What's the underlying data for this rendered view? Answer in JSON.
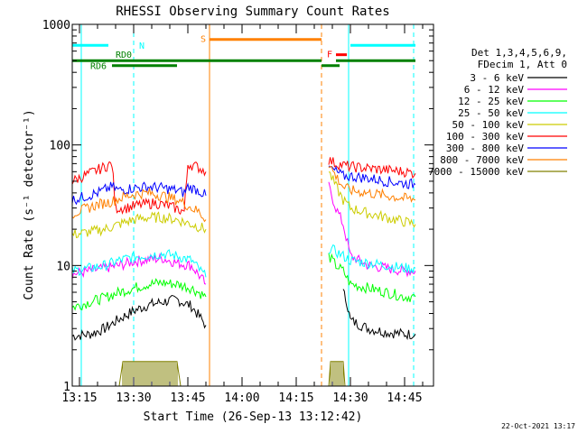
{
  "chart_data": {
    "type": "line",
    "title": "RHESSI Observing Summary Count Rates",
    "xlabel": "Start Time (26-Sep-13 13:12:42)",
    "ylabel": "Count Rate (s⁻¹ detector⁻¹)",
    "x_unit": "minutes after 13:00 UT",
    "xlim": [
      13,
      113
    ],
    "ylim": [
      1,
      1000
    ],
    "yscale": "log",
    "grid": false,
    "xticks": [
      {
        "value": 15,
        "label": "13:15"
      },
      {
        "value": 30,
        "label": "13:30"
      },
      {
        "value": 45,
        "label": "13:45"
      },
      {
        "value": 60,
        "label": "14:00"
      },
      {
        "value": 75,
        "label": "14:15"
      },
      {
        "value": 90,
        "label": "14:30"
      },
      {
        "value": 105,
        "label": "14:45"
      }
    ],
    "yticks": [
      {
        "value": 1,
        "label": "1"
      },
      {
        "value": 10,
        "label": "10"
      },
      {
        "value": 100,
        "label": "100"
      },
      {
        "value": 1000,
        "label": "1000"
      }
    ],
    "legend": {
      "placement": "right",
      "header": [
        "Det 1,3,4,5,6,9,",
        "FDecim 1, Att 0"
      ]
    },
    "series": [
      {
        "name": "3 - 6 keV",
        "color": "#000000",
        "segments": [
          [
            [
              13,
              2.6
            ],
            [
              18,
              2.7
            ],
            [
              22,
              3.0
            ],
            [
              26,
              3.6
            ],
            [
              30,
              4.2
            ],
            [
              34,
              4.7
            ],
            [
              38,
              5.0
            ],
            [
              42,
              5.2
            ],
            [
              46,
              4.6
            ],
            [
              50,
              3.2
            ]
          ],
          [
            [
              88,
              6
            ],
            [
              89,
              5
            ],
            [
              90,
              3.5
            ],
            [
              95,
              3.0
            ],
            [
              100,
              2.8
            ],
            [
              105,
              2.7
            ],
            [
              108,
              2.7
            ]
          ]
        ]
      },
      {
        "name": "6 - 12 keV",
        "color": "#ff00ff",
        "segments": [
          [
            [
              13,
              8.5
            ],
            [
              18,
              9.0
            ],
            [
              22,
              9.5
            ],
            [
              26,
              10
            ],
            [
              30,
              10.8
            ],
            [
              34,
              11.2
            ],
            [
              38,
              11.5
            ],
            [
              42,
              10.5
            ],
            [
              46,
              10
            ],
            [
              50,
              7
            ]
          ],
          [
            [
              84,
              45
            ],
            [
              86,
              30
            ],
            [
              88,
              22
            ],
            [
              90,
              12
            ],
            [
              95,
              10
            ],
            [
              100,
              9.5
            ],
            [
              105,
              9
            ],
            [
              108,
              9
            ]
          ]
        ]
      },
      {
        "name": "12 - 25 keV",
        "color": "#00ff00",
        "segments": [
          [
            [
              13,
              4.5
            ],
            [
              18,
              5.0
            ],
            [
              22,
              5.4
            ],
            [
              26,
              6.0
            ],
            [
              30,
              6.5
            ],
            [
              34,
              7.0
            ],
            [
              38,
              7.2
            ],
            [
              42,
              7.0
            ],
            [
              46,
              6.5
            ],
            [
              50,
              5.5
            ]
          ],
          [
            [
              84,
              12
            ],
            [
              86,
              10
            ],
            [
              88,
              9
            ],
            [
              90,
              7
            ],
            [
              95,
              6.5
            ],
            [
              100,
              6
            ],
            [
              105,
              5.5
            ],
            [
              108,
              5.5
            ]
          ]
        ]
      },
      {
        "name": "25 - 50 keV",
        "color": "#00ffff",
        "segments": [
          [
            [
              13,
              9
            ],
            [
              18,
              9.5
            ],
            [
              22,
              10
            ],
            [
              26,
              11
            ],
            [
              30,
              11.8
            ],
            [
              34,
              12.2
            ],
            [
              38,
              12.5
            ],
            [
              42,
              12
            ],
            [
              46,
              11
            ],
            [
              50,
              8
            ]
          ],
          [
            [
              84,
              14
            ],
            [
              86,
              13
            ],
            [
              88,
              12
            ],
            [
              90,
              11
            ],
            [
              95,
              10.5
            ],
            [
              100,
              10
            ],
            [
              105,
              9.5
            ],
            [
              108,
              9.5
            ]
          ]
        ]
      },
      {
        "name": "50 - 100 keV",
        "color": "#cccc00",
        "segments": [
          [
            [
              13,
              18
            ],
            [
              18,
              19
            ],
            [
              22,
              20
            ],
            [
              26,
              22
            ],
            [
              30,
              24
            ],
            [
              34,
              25
            ],
            [
              38,
              25
            ],
            [
              42,
              24
            ],
            [
              46,
              22
            ],
            [
              50,
              20
            ]
          ],
          [
            [
              84,
              60
            ],
            [
              86,
              45
            ],
            [
              88,
              35
            ],
            [
              90,
              30
            ],
            [
              95,
              27
            ],
            [
              100,
              25
            ],
            [
              105,
              23
            ],
            [
              108,
              22
            ]
          ]
        ]
      },
      {
        "name": "100 - 300 keV",
        "color": "#ff0000",
        "segments": [
          [
            [
              13,
              50
            ],
            [
              16,
              55
            ],
            [
              20,
              62
            ],
            [
              24,
              70
            ],
            [
              25,
              30
            ],
            [
              28,
              30
            ],
            [
              32,
              32
            ],
            [
              36,
              33
            ],
            [
              40,
              31
            ],
            [
              44,
              28
            ],
            [
              45,
              70
            ],
            [
              48,
              65
            ],
            [
              50,
              60
            ]
          ],
          [
            [
              84,
              75
            ],
            [
              86,
              70
            ],
            [
              88,
              68
            ],
            [
              90,
              66
            ],
            [
              95,
              64
            ],
            [
              100,
              62
            ],
            [
              105,
              60
            ],
            [
              108,
              58
            ]
          ]
        ]
      },
      {
        "name": "300 - 800 keV",
        "color": "#0000ff",
        "segments": [
          [
            [
              13,
              35
            ],
            [
              16,
              37
            ],
            [
              20,
              40
            ],
            [
              24,
              45
            ],
            [
              26,
              42
            ],
            [
              30,
              44
            ],
            [
              34,
              45
            ],
            [
              38,
              44
            ],
            [
              42,
              42
            ],
            [
              44,
              40
            ],
            [
              45,
              45
            ],
            [
              48,
              42
            ],
            [
              50,
              38
            ]
          ],
          [
            [
              84,
              65
            ],
            [
              86,
              60
            ],
            [
              88,
              55
            ],
            [
              90,
              55
            ],
            [
              95,
              53
            ],
            [
              100,
              50
            ],
            [
              105,
              48
            ],
            [
              108,
              47
            ]
          ]
        ]
      },
      {
        "name": "800 - 7000 keV",
        "color": "#ff8000",
        "segments": [
          [
            [
              13,
              27
            ],
            [
              16,
              29
            ],
            [
              20,
              32
            ],
            [
              24,
              34
            ],
            [
              26,
              36
            ],
            [
              30,
              39
            ],
            [
              34,
              40
            ],
            [
              38,
              38
            ],
            [
              42,
              35
            ],
            [
              44,
              33
            ],
            [
              46,
              30
            ],
            [
              48,
              28
            ],
            [
              50,
              24
            ]
          ],
          [
            [
              84,
              70
            ],
            [
              86,
              55
            ],
            [
              88,
              45
            ],
            [
              90,
              42
            ],
            [
              95,
              40
            ],
            [
              100,
              38
            ],
            [
              105,
              36
            ],
            [
              108,
              35
            ]
          ]
        ]
      },
      {
        "name": "7000 - 15000 keV",
        "color": "#808000",
        "segments": [
          [
            [
              26,
              1
            ],
            [
              27,
              1.6
            ],
            [
              30,
              1.6
            ],
            [
              34,
              1.6
            ],
            [
              38,
              1.6
            ],
            [
              42,
              1.6
            ],
            [
              43,
              1
            ]
          ],
          [
            [
              84,
              1
            ],
            [
              84.5,
              1.6
            ],
            [
              88,
              1.6
            ],
            [
              88.5,
              1
            ]
          ]
        ]
      }
    ],
    "flag_lines": [
      {
        "label": "N",
        "color": "#00ffff",
        "y": 670,
        "segments": [
          [
            13,
            23
          ],
          [
            90,
            108
          ]
        ]
      },
      {
        "label": "S",
        "color": "#ff8000",
        "y": 750,
        "segments": [
          [
            51,
            82
          ]
        ]
      },
      {
        "label": "F",
        "color": "#ff0000",
        "y": 560,
        "segments": [
          [
            86,
            89
          ]
        ]
      },
      {
        "label": "RD0",
        "color": "#008000",
        "y": 500,
        "segments": [
          [
            13,
            82
          ],
          [
            86,
            108
          ]
        ]
      },
      {
        "label": "RD6",
        "color": "#008000",
        "y": 455,
        "segments": [
          [
            24,
            42
          ],
          [
            82,
            87
          ]
        ]
      }
    ],
    "vertical_lines": [
      {
        "x": 15.5,
        "color": "#00ffff",
        "style": "solid"
      },
      {
        "x": 30.0,
        "color": "#00ffff",
        "style": "dashed"
      },
      {
        "x": 51.0,
        "color": "#ff8000",
        "style": "solid"
      },
      {
        "x": 82.0,
        "color": "#ff8000",
        "style": "dashed"
      },
      {
        "x": 89.5,
        "color": "#00ffff",
        "style": "solid"
      },
      {
        "x": 107.5,
        "color": "#00ffff",
        "style": "dashed"
      }
    ]
  },
  "footer": {
    "date_stamp": "22-Oct-2021 13:17"
  }
}
